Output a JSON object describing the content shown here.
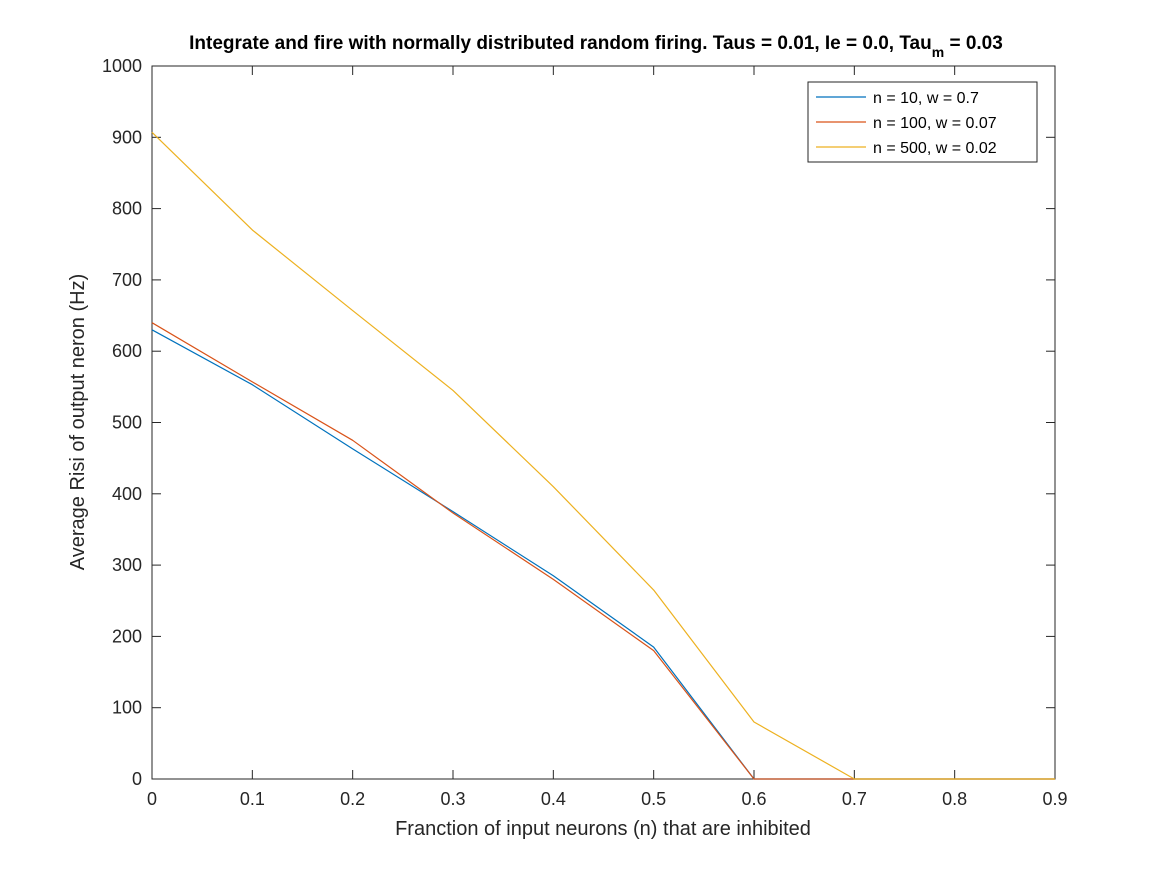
{
  "chart_data": {
    "type": "line",
    "title_main": "Integrate and fire with normally distributed random firing. Taus = 0.01, Ie = 0.0, Tau",
    "title_subscript": "m",
    "title_tail": " = 0.03",
    "xlabel": "Franction of input neurons (n) that are inhibited",
    "ylabel": "Average Risi of output neron (Hz)",
    "xlim": [
      0,
      0.9
    ],
    "ylim": [
      0,
      1000
    ],
    "x_ticks": [
      "0",
      "0.1",
      "0.2",
      "0.3",
      "0.4",
      "0.5",
      "0.6",
      "0.7",
      "0.8",
      "0.9"
    ],
    "y_ticks": [
      "0",
      "100",
      "200",
      "300",
      "400",
      "500",
      "600",
      "700",
      "800",
      "900",
      "1000"
    ],
    "grid": false,
    "legend_position": "top-right",
    "x": [
      0,
      0.1,
      0.2,
      0.3,
      0.4,
      0.5,
      0.6,
      0.7,
      0.8,
      0.9
    ],
    "series": [
      {
        "name": "n = 10, w = 0.7",
        "color": "#0072BD",
        "values": [
          630,
          553,
          463,
          375,
          285,
          185,
          0,
          0,
          0,
          0
        ]
      },
      {
        "name": "n = 100, w = 0.07",
        "color": "#D95319",
        "values": [
          640,
          557,
          475,
          373,
          280,
          180,
          0,
          0,
          0,
          0
        ]
      },
      {
        "name": "n = 500, w = 0.02",
        "color": "#EDB120",
        "values": [
          907,
          770,
          657,
          545,
          410,
          265,
          80,
          0,
          0,
          0
        ]
      }
    ]
  }
}
